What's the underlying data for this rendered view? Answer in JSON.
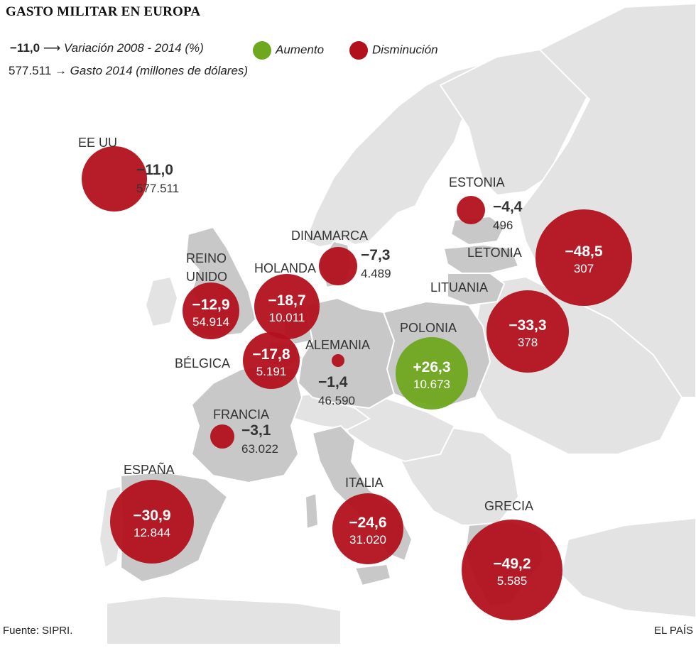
{
  "title": "GASTO MILITAR EN EUROPA",
  "legend": {
    "sample_variation": "−11,0",
    "variation_label": "Variación 2008 - 2014 (%)",
    "sample_spending": "577.511",
    "spending_label": "Gasto 2014 (millones de dólares)",
    "increase_label": "Aumento",
    "decrease_label": "Disminución",
    "increase_color": "#6fa81f",
    "decrease_color": "#b3101e"
  },
  "source": "Fuente: SIPRI.",
  "brand": "EL PAÍS",
  "map_colors": {
    "highlighted_country": "#c8c8c8",
    "other_land": "#e3e3e3",
    "sea": "#ffffff"
  },
  "chart_data": {
    "type": "map-bubble",
    "countries": [
      {
        "name": "EE UU",
        "variation": "−11,0",
        "spending": "577.511",
        "status": "decrease"
      },
      {
        "name": "ESTONIA",
        "variation": "−4,4",
        "spending": "496",
        "status": "decrease"
      },
      {
        "name": "LETONIA",
        "variation": "−48,5",
        "spending": "307",
        "status": "decrease"
      },
      {
        "name": "LITUANIA",
        "variation": "−33,3",
        "spending": "378",
        "status": "decrease"
      },
      {
        "name": "DINAMARCA",
        "variation": "−7,3",
        "spending": "4.489",
        "status": "decrease"
      },
      {
        "name": "REINO UNIDO",
        "variation": "−12,9",
        "spending": "54.914",
        "status": "decrease"
      },
      {
        "name": "HOLANDA",
        "variation": "−18,7",
        "spending": "10.011",
        "status": "decrease"
      },
      {
        "name": "BÉLGICA",
        "variation": "−17,8",
        "spending": "5.191",
        "status": "decrease"
      },
      {
        "name": "ALEMANIA",
        "variation": "−1,4",
        "spending": "46.590",
        "status": "decrease"
      },
      {
        "name": "POLONIA",
        "variation": "+26,3",
        "spending": "10.673",
        "status": "increase"
      },
      {
        "name": "FRANCIA",
        "variation": "−3,1",
        "spending": "63.022",
        "status": "decrease"
      },
      {
        "name": "ESPAÑA",
        "variation": "−30,9",
        "spending": "12.844",
        "status": "decrease"
      },
      {
        "name": "ITALIA",
        "variation": "−24,6",
        "spending": "31.020",
        "status": "decrease"
      },
      {
        "name": "GRECIA",
        "variation": "−49,2",
        "spending": "5.585",
        "status": "decrease"
      }
    ]
  }
}
